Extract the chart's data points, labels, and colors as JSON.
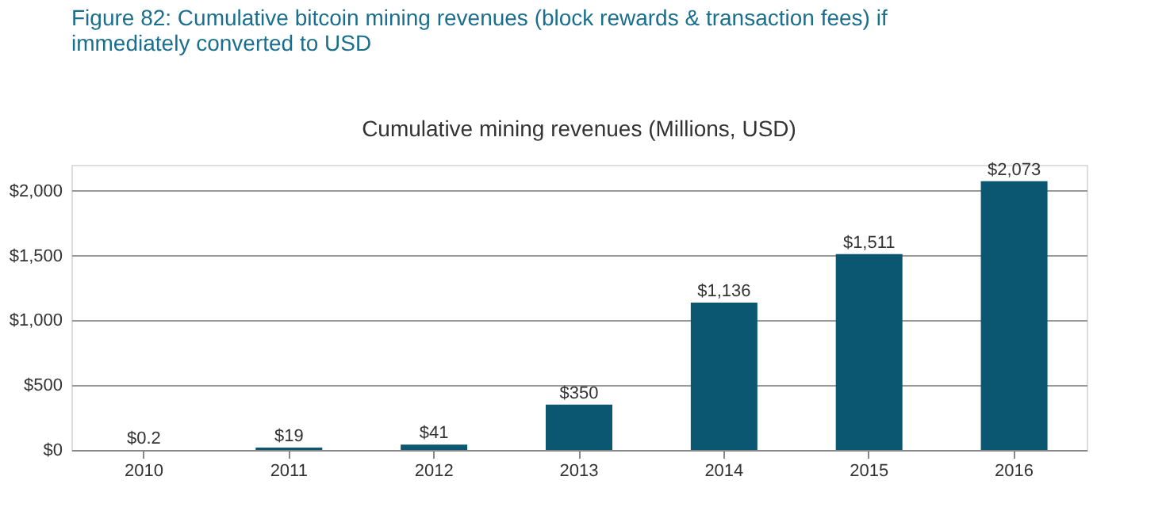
{
  "chart_data": {
    "type": "bar",
    "title": "Figure 82: Cumulative bitcoin mining revenues (block rewards & transaction fees) if immediately converted to USD",
    "subtitle": "Cumulative mining revenues (Millions, USD)",
    "categories": [
      "2010",
      "2011",
      "2012",
      "2013",
      "2014",
      "2015",
      "2016"
    ],
    "values": [
      0.2,
      19,
      41,
      350,
      1136,
      1511,
      2073
    ],
    "value_labels": [
      "$0.2",
      "$19",
      "$41",
      "$350",
      "$1,136",
      "$1,511",
      "$2,073"
    ],
    "color": "#0b5670",
    "ylim": [
      0,
      2200
    ],
    "yticks": [
      {
        "value": 0,
        "label": "$0"
      },
      {
        "value": 500,
        "label": "$500"
      },
      {
        "value": 1000,
        "label": "$1,000"
      },
      {
        "value": 1500,
        "label": "$1,500"
      },
      {
        "value": 2000,
        "label": "$2,000"
      }
    ],
    "grid": "y"
  }
}
